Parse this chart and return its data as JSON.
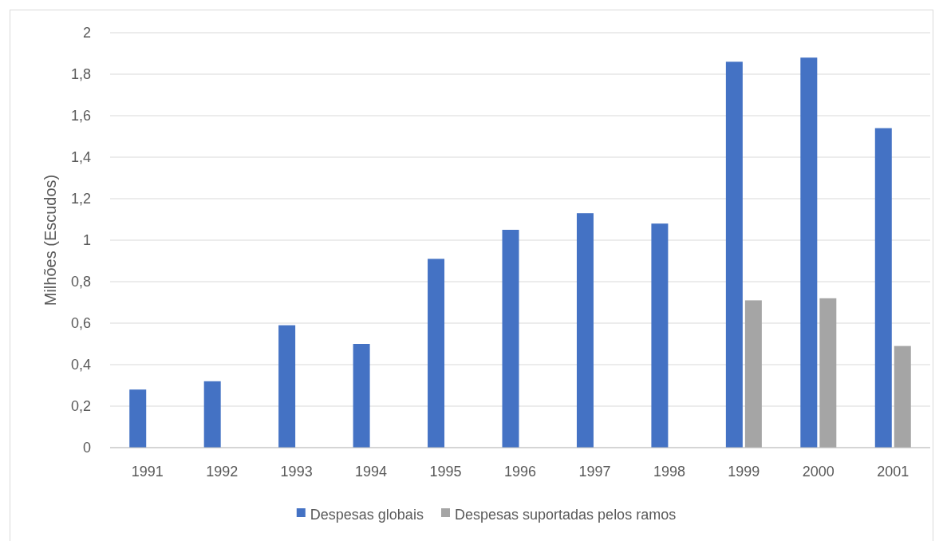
{
  "chart_data": {
    "type": "bar",
    "ylabel": "Milhões (Escudos)",
    "categories": [
      "1991",
      "1992",
      "1993",
      "1994",
      "1995",
      "1996",
      "1997",
      "1998",
      "1999",
      "2000",
      "2001"
    ],
    "series": [
      {
        "name": "Despesas globais",
        "color": "#4472c4",
        "values": [
          0.28,
          0.32,
          0.59,
          0.5,
          0.91,
          1.05,
          1.13,
          1.08,
          1.86,
          1.88,
          1.54
        ]
      },
      {
        "name": "Despesas suportadas pelos ramos",
        "color": "#a5a5a5",
        "values": [
          null,
          null,
          null,
          null,
          null,
          null,
          null,
          null,
          0.71,
          0.72,
          0.49
        ]
      }
    ],
    "ylim": [
      0,
      2
    ],
    "yticks": [
      0,
      {
        "value": 0.2,
        "label": "0,2"
      },
      {
        "value": 0.4,
        "label": "0,4"
      },
      {
        "value": 0.6,
        "label": "0,6"
      },
      {
        "value": 0.8,
        "label": "0,8"
      },
      1,
      {
        "value": 1.2,
        "label": "1,2"
      },
      {
        "value": 1.4,
        "label": "1,4"
      },
      {
        "value": 1.6,
        "label": "1,6"
      },
      {
        "value": 1.8,
        "label": "1,8"
      },
      2
    ],
    "grid": "y",
    "legend": "bottom"
  }
}
